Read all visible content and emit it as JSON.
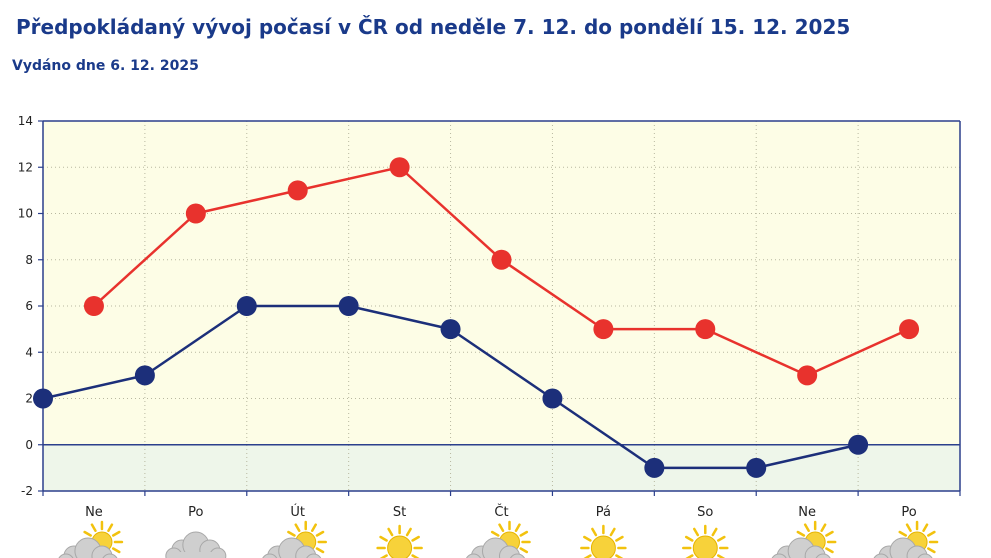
{
  "header": {
    "title": "Předpokládaný vývoj počasí v ČR od neděle 7. 12. do pondělí 15. 12. 2025",
    "issued": "Vydáno dne 6. 12. 2025"
  },
  "colors": {
    "max_series": "#e8322d",
    "min_series": "#1c2f7a",
    "plot_background": "#fdfde6",
    "below_zero_background": "#eef6ea",
    "axis": "#2b3f8c",
    "grid": "#b8b8a0"
  },
  "weather_icons": [
    "sun-behind-cloud-icon",
    "cloud-icon",
    "sun-behind-cloud-icon",
    "sun-icon",
    "sun-behind-cloud-icon",
    "sun-icon",
    "sun-icon",
    "sun-behind-cloud-icon",
    "sun-behind-cloud-icon"
  ],
  "chart_data": {
    "type": "line",
    "title": "",
    "xlabel": "",
    "ylabel": "",
    "ylim": [
      -2,
      14
    ],
    "yticks": [
      -2,
      0,
      2,
      4,
      6,
      8,
      10,
      12,
      14
    ],
    "grid": true,
    "categories": [
      "Ne",
      "Po",
      "Út",
      "St",
      "Čt",
      "Pá",
      "So",
      "Ne",
      "Po"
    ],
    "series": [
      {
        "key": "max",
        "color": "#e8322d",
        "points": [
          {
            "x": 0.5,
            "y": 6
          },
          {
            "x": 1.5,
            "y": 10
          },
          {
            "x": 2.5,
            "y": 11
          },
          {
            "x": 3.5,
            "y": 12
          },
          {
            "x": 4.5,
            "y": 8
          },
          {
            "x": 5.5,
            "y": 5
          },
          {
            "x": 6.5,
            "y": 5
          },
          {
            "x": 7.5,
            "y": 3
          },
          {
            "x": 8.5,
            "y": 5
          }
        ]
      },
      {
        "key": "min",
        "color": "#1c2f7a",
        "points": [
          {
            "x": 0,
            "y": 2
          },
          {
            "x": 1,
            "y": 3
          },
          {
            "x": 2,
            "y": 6
          },
          {
            "x": 3,
            "y": 6
          },
          {
            "x": 4,
            "y": 5
          },
          {
            "x": 5,
            "y": 2
          },
          {
            "x": 6,
            "y": -1
          },
          {
            "x": 7,
            "y": -1
          },
          {
            "x": 8,
            "y": 0
          }
        ]
      }
    ]
  }
}
